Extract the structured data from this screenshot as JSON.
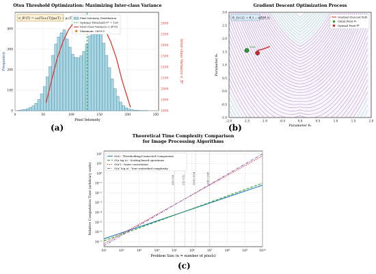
{
  "chart_data": [
    {
      "panel": "(a)",
      "type": "bar",
      "title": "Otsu Threshold Optimization: Maximizing Inter-class Variance",
      "formula": "σ_B²(T) = ω₀(T)ω₁(T)[μ₀(T) − μ₁(T)]²",
      "xlabel": "Pixel Intensity",
      "ylabel": "Frequency",
      "y2label": "Inter-class Variance σ_B²",
      "xlim": [
        0,
        255
      ],
      "ylim": [
        0,
        480
      ],
      "y2lim": [
        1800,
        2700
      ],
      "xticks": [
        "0",
        "50",
        "100",
        "150",
        "200",
        "250"
      ],
      "yticks": [
        "0",
        "100",
        "200",
        "300",
        "400"
      ],
      "y2ticks": [
        "1800",
        "1900",
        "2000",
        "2100",
        "2200",
        "2300",
        "2400",
        "2500",
        "2600"
      ],
      "bin_width": 5,
      "bin_starts": [
        5,
        10,
        15,
        20,
        25,
        30,
        35,
        40,
        45,
        50,
        55,
        60,
        65,
        70,
        75,
        80,
        85,
        90,
        95,
        100,
        105,
        110,
        115,
        120,
        125,
        130,
        135,
        140,
        145,
        150,
        155,
        160,
        165,
        170,
        175,
        180,
        185,
        190,
        195,
        200,
        205,
        210,
        215,
        220,
        225,
        230
      ],
      "values": [
        2,
        4,
        6,
        10,
        16,
        24,
        36,
        55,
        82,
        118,
        165,
        215,
        270,
        325,
        360,
        380,
        395,
        350,
        310,
        275,
        260,
        258,
        268,
        290,
        325,
        365,
        400,
        430,
        415,
        380,
        330,
        270,
        210,
        155,
        108,
        70,
        42,
        25,
        14,
        8,
        5,
        3,
        2,
        1,
        1,
        1
      ],
      "variance_curve": {
        "x": [
          55,
          65,
          75,
          85,
          95,
          105,
          115,
          128,
          140,
          150,
          160,
          170,
          180,
          190,
          205
        ],
        "y": [
          1870,
          2080,
          2280,
          2430,
          2540,
          2610,
          2648,
          2660,
          2648,
          2610,
          2540,
          2430,
          2280,
          2080,
          1830
        ]
      },
      "optimal_threshold": 128,
      "maximum_value": 2659.9,
      "legend": [
        "Pixel Intensity Distribution",
        "Optimal Threshold T* = 128",
        "Inter-class Variance σ_B²(T)",
        "Maximum: 2659.9"
      ],
      "colors": {
        "bars": "#a9d6e3",
        "bar_edge": "#3e7f95",
        "curve": "#e0352b",
        "threshold": "#2fa84a",
        "marker": "#e8871e"
      }
    },
    {
      "panel": "(b)",
      "type": "contour",
      "title": "Gradient Descent Optimization Process",
      "formula": "θ_{t+1} = θ_t − η∇J(θ_t)",
      "xlabel": "Parameter θ₁",
      "ylabel": "Parameter θ₂",
      "xlim": [
        -2.0,
        2.0
      ],
      "ylim": [
        -1.0,
        3.0
      ],
      "xticks": [
        "-2.0",
        "-1.5",
        "-1.0",
        "-0.5",
        "0.0",
        "0.5",
        "1.0",
        "1.5",
        "2.0"
      ],
      "yticks": [
        "-1.0",
        "-0.5",
        "0.0",
        "0.5",
        "1.0",
        "1.5",
        "2.0",
        "2.5",
        "3.0"
      ],
      "legend": [
        "Gradient Descent Path",
        "Initial Point θ₀",
        "Optimal Point θ*"
      ],
      "path": {
        "x": [
          -1.2,
          -1.05,
          -0.85
        ],
        "y": [
          1.55,
          1.6,
          1.7
        ]
      },
      "initial_point": {
        "x": -1.5,
        "y": 1.55
      },
      "optimal_point": {
        "x": -1.2,
        "y": 1.45
      },
      "annotation_labels": [
        "Start",
        "Optimum"
      ],
      "colors": {
        "contours": "#9b6fb8",
        "path": "#d62728",
        "initial": "#2ca02c",
        "optimal": "#d62728"
      }
    },
    {
      "panel": "(c)",
      "type": "line",
      "title": "Theoretical Time Complexity Comparison",
      "subtitle": "for Image Processing Algorithms",
      "xlabel": "Problem Size (n = number of pixels)",
      "ylabel": "Relative Computation Time (arbitrary units)",
      "x_scale": "log",
      "y_scale": "log",
      "xticks": [
        "10¹",
        "10²",
        "10³",
        "10⁴",
        "10⁵",
        "10⁶",
        "10⁷",
        "10⁸",
        "10⁹",
        "10¹⁰"
      ],
      "yticks": [
        "10⁻⁷",
        "10⁻⁶",
        "10⁻⁵",
        "10⁻⁴",
        "10⁻³",
        "10⁻²",
        "10⁻¹",
        "10⁰",
        "10¹",
        "10²"
      ],
      "series": [
        {
          "name": "O(n) - Thresholding/Connected Components",
          "x": [
            1,
            10
          ],
          "y": [
            -6.7,
            -1.2
          ],
          "color": "#1f77b4",
          "style": "solid"
        },
        {
          "name": "O(n log n) - Sorting-based operations",
          "x": [
            1,
            10
          ],
          "y": [
            -6.9,
            -1.0
          ],
          "color": "#2ca02c",
          "style": "dashed"
        },
        {
          "name": "O(n²) - Naive convolution",
          "x": [
            1,
            10
          ],
          "y": [
            -7.2,
            1.8
          ],
          "color": "#d62728",
          "style": "dotted"
        },
        {
          "name": "O(n² log n) - Your watershed complexity",
          "x": [
            1,
            10
          ],
          "y": [
            -7.4,
            2.0
          ],
          "color": "#9467bd",
          "style": "dashdot"
        }
      ],
      "vertical_markers": [
        {
          "x": 5.0,
          "label": "256×256"
        },
        {
          "x": 5.6,
          "label": "512×512"
        },
        {
          "x": 6.2,
          "label": "1024×1024"
        },
        {
          "x": 7.0,
          "label": "2048×2048"
        }
      ]
    }
  ],
  "panel_labels": [
    "(a)",
    "(b)",
    "(c)"
  ]
}
